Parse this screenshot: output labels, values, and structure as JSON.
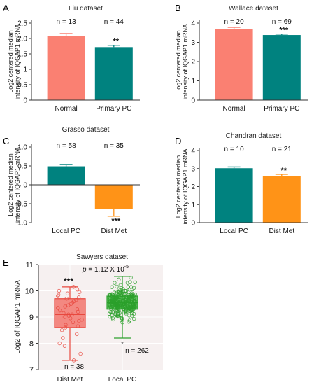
{
  "panels": [
    {
      "id": "A",
      "letter": "A",
      "type": "bar",
      "title": "Liu dataset",
      "ylabel": [
        "Log2 centered median",
        "intensity of IQGAP1 mRNA"
      ],
      "ylim": [
        0,
        2.5
      ],
      "yticks": [
        0,
        0.5,
        1.0,
        1.5,
        2.0,
        2.5
      ],
      "ytick_labels": [
        "0",
        "0.5",
        "1",
        "1.5",
        "2.0",
        "2.5"
      ],
      "categories": [
        "Normal",
        "Primary PC"
      ],
      "values": [
        2.09,
        1.72
      ],
      "errors": [
        0.07,
        0.06
      ],
      "colors": [
        "#fa8072",
        "#00827f"
      ],
      "counts": [
        "n = 13",
        "n = 44"
      ],
      "stars": [
        "",
        "**"
      ]
    },
    {
      "id": "B",
      "letter": "B",
      "type": "bar",
      "title": "Wallace dataset",
      "ylabel": [
        "Log2 centered median",
        "intensity of IQGAP1 mRNA"
      ],
      "ylim": [
        0,
        4
      ],
      "yticks": [
        0,
        1,
        2,
        3,
        4
      ],
      "ytick_labels": [
        "0",
        "1",
        "2",
        "3",
        "4"
      ],
      "categories": [
        "Normal",
        "Primary PC"
      ],
      "values": [
        3.68,
        3.38
      ],
      "errors": [
        0.1,
        0.05
      ],
      "colors": [
        "#fa8072",
        "#00827f"
      ],
      "counts": [
        "n = 20",
        "n = 69"
      ],
      "stars": [
        "",
        "***"
      ]
    },
    {
      "id": "C",
      "letter": "C",
      "type": "bar",
      "title": "Grasso dataset",
      "ylabel": [
        "Log2 centered median",
        "intensity of IQGAP1 mRNA"
      ],
      "ylim": [
        -1.0,
        1.0
      ],
      "yticks": [
        -1.0,
        -0.5,
        0,
        0.5,
        1.0
      ],
      "ytick_labels": [
        "-1.0",
        "-0.5",
        "0",
        "0.5",
        "1.0"
      ],
      "categories": [
        "Local PC",
        "Dist Met"
      ],
      "values": [
        0.49,
        -0.63
      ],
      "errors": [
        0.05,
        0.2
      ],
      "colors": [
        "#00827f",
        "#ff9317"
      ],
      "counts": [
        "n = 58",
        "n = 35"
      ],
      "stars": [
        "",
        "***"
      ]
    },
    {
      "id": "D",
      "letter": "D",
      "type": "bar",
      "title": "Chandran dataset",
      "ylabel": [
        "Log2 centered median",
        "intensity of IQGAP1 mRNA"
      ],
      "ylim": [
        0,
        4
      ],
      "yticks": [
        0,
        1,
        2,
        3,
        4
      ],
      "ytick_labels": [
        "0",
        "1",
        "2",
        "3",
        "4"
      ],
      "categories": [
        "Local PC",
        "Dist Met"
      ],
      "values": [
        3.02,
        2.6
      ],
      "errors": [
        0.07,
        0.08
      ],
      "colors": [
        "#00827f",
        "#ff9317"
      ],
      "counts": [
        "n = 10",
        "n = 21"
      ],
      "stars": [
        "",
        "**"
      ]
    }
  ],
  "box_panel": {
    "letter": "E",
    "title": "Sawyers dataset",
    "ylabel": "Log2 of IQGAP1 mRNA",
    "ylim": [
      7,
      11
    ],
    "yticks": [
      7,
      8,
      9,
      10,
      11
    ],
    "categories": [
      "Dist Met",
      "Local PC"
    ],
    "pvalue_prefix": "p",
    "pvalue_text": " = 1.12 X 10",
    "pvalue_exp": "-5",
    "stars": "***",
    "counts": [
      "n = 38",
      "n = 262"
    ],
    "outlier_mark": "*"
  },
  "chart_data": [
    {
      "type": "bar",
      "title": "Liu dataset",
      "ylabel": "Log2 centered median intensity of IQGAP1 mRNA",
      "categories": [
        "Normal",
        "Primary PC"
      ],
      "values": [
        2.09,
        1.72
      ],
      "errors": [
        0.07,
        0.06
      ],
      "ylim": [
        0,
        2.5
      ]
    },
    {
      "type": "bar",
      "title": "Wallace dataset",
      "ylabel": "Log2 centered median intensity of IQGAP1 mRNA",
      "categories": [
        "Normal",
        "Primary PC"
      ],
      "values": [
        3.68,
        3.38
      ],
      "errors": [
        0.1,
        0.05
      ],
      "ylim": [
        0,
        4
      ]
    },
    {
      "type": "bar",
      "title": "Grasso dataset",
      "ylabel": "Log2 centered median intensity of IQGAP1 mRNA",
      "categories": [
        "Local PC",
        "Dist Met"
      ],
      "values": [
        0.49,
        -0.63
      ],
      "errors": [
        0.05,
        0.2
      ],
      "ylim": [
        -1.0,
        1.0
      ]
    },
    {
      "type": "bar",
      "title": "Chandran dataset",
      "ylabel": "Log2 centered median intensity of IQGAP1 mRNA",
      "categories": [
        "Local PC",
        "Dist Met"
      ],
      "values": [
        3.02,
        2.6
      ],
      "errors": [
        0.07,
        0.08
      ],
      "ylim": [
        0,
        4
      ]
    },
    {
      "type": "box",
      "title": "Sawyers dataset",
      "ylabel": "Log2 of IQGAP1 mRNA",
      "ylim": [
        7,
        11
      ],
      "series": [
        {
          "name": "Dist Met",
          "color": "#e8483e",
          "fill": "#f2756d",
          "whisker_low": 7.35,
          "q1": 8.6,
          "median": 9.1,
          "q3": 9.7,
          "whisker_high": 10.15,
          "points": [
            7.35,
            7.6,
            7.9,
            8.0,
            8.2,
            8.35,
            8.5,
            8.6,
            8.65,
            8.7,
            8.8,
            8.85,
            8.9,
            8.95,
            9.0,
            9.05,
            9.1,
            9.1,
            9.15,
            9.2,
            9.25,
            9.3,
            9.35,
            9.4,
            9.45,
            9.5,
            9.55,
            9.6,
            9.65,
            9.7,
            9.75,
            9.8,
            9.85,
            9.9,
            9.95,
            10.0,
            10.05,
            10.15
          ]
        },
        {
          "name": "Local PC",
          "color": "#2ca02c",
          "fill": "#4cbb4c",
          "whisker_low": 8.2,
          "q1": 9.3,
          "median": 9.55,
          "q3": 9.8,
          "whisker_high": 10.55,
          "outliers": [
            8.05
          ]
        }
      ]
    }
  ],
  "colors": {
    "salmon": "#fa8072",
    "teal": "#00827f",
    "orange": "#ff9317",
    "box_red": "#e8483e",
    "box_green": "#2ca02c"
  }
}
